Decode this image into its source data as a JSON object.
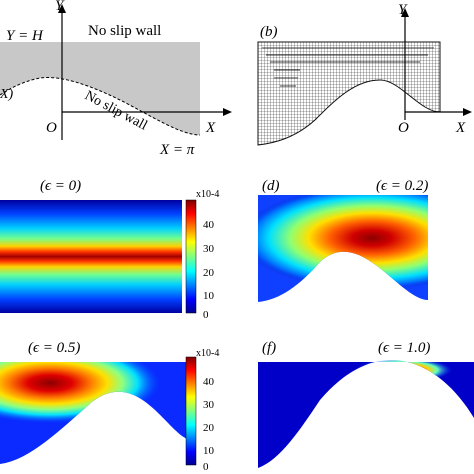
{
  "figure": {
    "panel_a": {
      "top_left_label": "Y = H",
      "top_wall": "No slip wall",
      "bottom_wall": "No slip wall",
      "y_axis": "Y",
      "x_axis": "X",
      "origin": "O",
      "x_end": "X = π",
      "cut_label": "X)"
    },
    "panel_b": {
      "tag": "(b)",
      "y_axis": "Y",
      "x_axis": "X",
      "origin": "O"
    },
    "panel_c": {
      "title": "(ϵ = 0)",
      "colorbar": {
        "exponent": "x10-4",
        "ticks": [
          "40",
          "30",
          "20",
          "10",
          "0"
        ]
      }
    },
    "panel_d": {
      "tag": "(d)",
      "title": "(ϵ = 0.2)"
    },
    "panel_e": {
      "title": "(ϵ = 0.5)",
      "colorbar": {
        "exponent": "x10-4",
        "ticks": [
          "40",
          "30",
          "20",
          "10",
          "0"
        ]
      }
    },
    "panel_f": {
      "tag": "(f)",
      "title": "(ϵ = 1.0)"
    }
  },
  "colors": {
    "wall_fill": "#c8c8c8",
    "mesh": "#333333",
    "jet_low": "#00008f",
    "jet_high": "#7f0000"
  }
}
